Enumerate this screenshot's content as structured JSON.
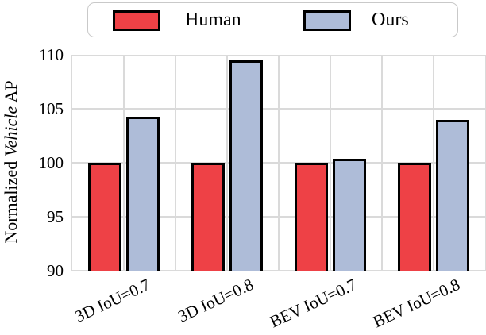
{
  "legend": {
    "items": [
      {
        "label": "Human",
        "color": "#ee4146"
      },
      {
        "label": "Ours",
        "color": "#aebcd8"
      }
    ]
  },
  "chart_data": {
    "type": "bar",
    "title": "",
    "categories": [
      "3D IoU=0.7",
      "3D IoU=0.8",
      "BEV IoU=0.7",
      "BEV IoU=0.8"
    ],
    "series": [
      {
        "name": "Human",
        "color": "#ee4146",
        "values": [
          100,
          100,
          100,
          100
        ]
      },
      {
        "name": "Ours",
        "color": "#aebcd8",
        "values": [
          104.3,
          109.5,
          100.4,
          104.0
        ]
      }
    ],
    "ylabel": {
      "prefix": "Normalized",
      "italic": "Vehicle",
      "suffix": "AP"
    },
    "ylim": [
      90,
      110
    ],
    "yticks": [
      90,
      95,
      100,
      105,
      110
    ],
    "xtick_rotation_deg": 25,
    "grid": true,
    "grid_color": "#dadada",
    "bar_edge_color": "#000000",
    "legend_position": "top-center"
  }
}
